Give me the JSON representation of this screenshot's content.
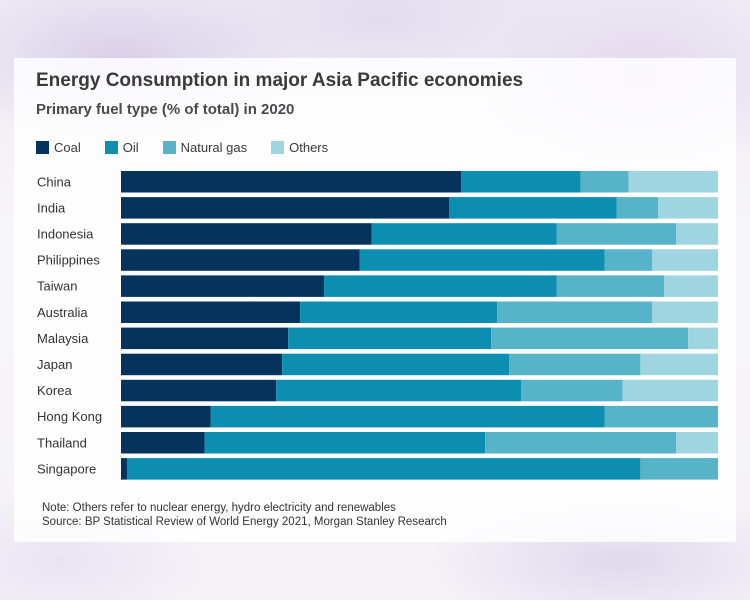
{
  "title": "Energy Consumption in major Asia Pacific economies",
  "subtitle": "Primary fuel type (% of total) in 2020",
  "notes": {
    "note": "Note: Others refer to nuclear energy, hydro electricity and renewables",
    "source": "Source: BP Statistical Review of World Energy 2021, Morgan Stanley Research"
  },
  "chart_data": {
    "type": "bar",
    "orientation": "horizontal",
    "stacked": true,
    "unit": "% of total",
    "xlim": [
      0,
      100
    ],
    "legend_position": "top-left",
    "grid": false,
    "categories": [
      "China",
      "India",
      "Indonesia",
      "Philippines",
      "Taiwan",
      "Australia",
      "Malaysia",
      "Japan",
      "Korea",
      "Hong Kong",
      "Thailand",
      "Singapore"
    ],
    "series": [
      {
        "name": "Coal",
        "color": "#06335b",
        "values": [
          57,
          55,
          42,
          40,
          34,
          30,
          28,
          27,
          26,
          15,
          14,
          1
        ]
      },
      {
        "name": "Oil",
        "color": "#0b8eb0",
        "values": [
          20,
          28,
          31,
          41,
          39,
          33,
          34,
          38,
          41,
          66,
          47,
          86
        ]
      },
      {
        "name": "Natural gas",
        "color": "#57b3c8",
        "values": [
          8,
          7,
          20,
          8,
          18,
          26,
          33,
          22,
          17,
          19,
          32,
          13
        ]
      },
      {
        "name": "Others",
        "color": "#9fd5e0",
        "values": [
          15,
          10,
          7,
          11,
          9,
          11,
          5,
          13,
          16,
          0,
          7,
          0
        ]
      }
    ]
  }
}
